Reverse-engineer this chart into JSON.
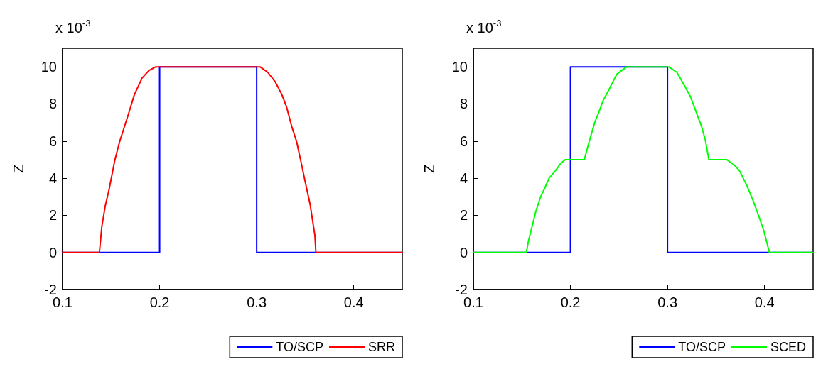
{
  "chart_data": [
    {
      "type": "line",
      "ylabel": "Z",
      "annotations": [
        "x 10$^{-3}$"
      ],
      "xlim": [
        0.1,
        0.45
      ],
      "xticks": [
        0.1,
        0.2,
        0.3,
        0.4
      ],
      "ylim": [
        -2,
        11
      ],
      "yticks": [
        -2,
        0,
        2,
        4,
        6,
        8,
        10
      ],
      "grid": false,
      "legend": "bottom right",
      "marker": "none",
      "line_style": "solid",
      "series": [
        {
          "name": "TO/SCP",
          "color": "#0000ff",
          "x": [
            0.1,
            0.2,
            0.2,
            0.3,
            0.3,
            0.45
          ],
          "values": [
            0,
            0,
            10,
            10,
            0,
            0
          ]
        },
        {
          "name": "SRR",
          "color": "#ff0000",
          "x": [
            0.1,
            0.138,
            0.1405,
            0.144,
            0.148,
            0.154,
            0.159,
            0.167,
            0.174,
            0.182,
            0.189,
            0.196,
            0.3035,
            0.3115,
            0.319,
            0.326,
            0.331,
            0.336,
            0.341,
            0.346,
            0.35,
            0.355,
            0.36,
            0.361,
            0.45
          ],
          "values": [
            0,
            0,
            1.4,
            2.5,
            3.4,
            5.0,
            6.0,
            7.3,
            8.5,
            9.4,
            9.8,
            10,
            10,
            9.7,
            9.2,
            8.5,
            7.8,
            6.8,
            6.0,
            4.8,
            3.8,
            2.6,
            0.9,
            0,
            0
          ]
        }
      ]
    },
    {
      "type": "line",
      "ylabel": "Z",
      "annotations": [
        "x 10$^{-3}$"
      ],
      "xlim": [
        0.1,
        0.45
      ],
      "xticks": [
        0.1,
        0.2,
        0.3,
        0.4
      ],
      "ylim": [
        -2,
        11
      ],
      "yticks": [
        -2,
        0,
        2,
        4,
        6,
        8,
        10
      ],
      "grid": false,
      "legend": "bottom right",
      "marker": "none",
      "line_style": "solid",
      "series": [
        {
          "name": "TO/SCP",
          "color": "#0000ff",
          "x": [
            0.1,
            0.2,
            0.2,
            0.3,
            0.3,
            0.45
          ],
          "values": [
            0,
            0,
            10,
            10,
            0,
            0
          ]
        },
        {
          "name": "SCED",
          "color": "#00ff00",
          "x": [
            0.1,
            0.1546,
            0.1567,
            0.1605,
            0.1643,
            0.1693,
            0.173,
            0.178,
            0.1845,
            0.19,
            0.1946,
            0.2143,
            0.2174,
            0.22,
            0.225,
            0.2288,
            0.2338,
            0.24,
            0.2477,
            0.2579,
            0.3014,
            0.3097,
            0.3173,
            0.3236,
            0.33,
            0.335,
            0.3388,
            0.3426,
            0.361,
            0.369,
            0.3742,
            0.3818,
            0.3881,
            0.3944,
            0.399,
            0.405,
            0.45
          ],
          "values": [
            0,
            0,
            0.6,
            1.4,
            2.2,
            3.0,
            3.4,
            4.0,
            4.4,
            4.8,
            5.0,
            5.0,
            5.6,
            6.1,
            7.0,
            7.5,
            8.2,
            8.8,
            9.6,
            10,
            10,
            9.7,
            9.0,
            8.4,
            7.5,
            6.8,
            6.1,
            5.0,
            5.0,
            4.7,
            4.4,
            3.6,
            2.8,
            1.9,
            1.2,
            0,
            0
          ]
        }
      ]
    }
  ]
}
